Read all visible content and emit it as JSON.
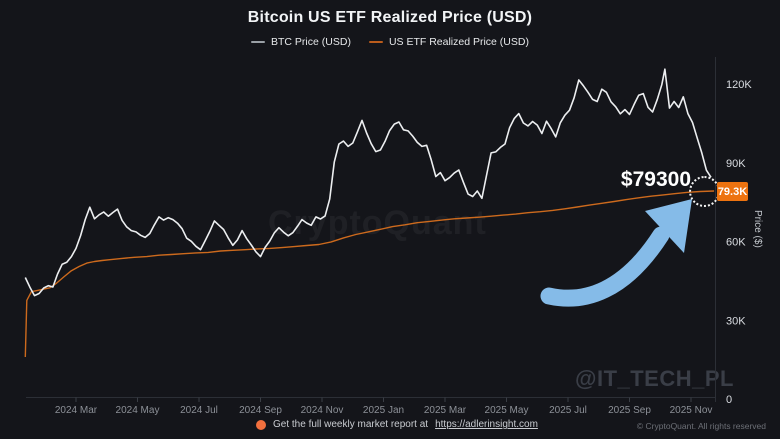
{
  "title": "Bitcoin US ETF Realized Price (USD)",
  "legend": [
    {
      "label": "BTC Price (USD)",
      "color": "#9aa0a6"
    },
    {
      "label": "US ETF Realized Price (USD)",
      "color": "#bb5c1c"
    }
  ],
  "watermark_center": "CryptoQuant",
  "watermark_handle": "@IT_TECH_PL",
  "y_axis": {
    "label": "Price ($)",
    "ticks": [
      {
        "label": "0",
        "value": 0
      },
      {
        "label": "30K",
        "value": 30
      },
      {
        "label": "60K",
        "value": 60
      },
      {
        "label": "90K",
        "value": 90
      },
      {
        "label": "120K",
        "value": 120
      }
    ]
  },
  "x_axis": {
    "ticks": [
      {
        "label": "2024 Mar",
        "t": 2
      },
      {
        "label": "2024 May",
        "t": 4
      },
      {
        "label": "2024 Jul",
        "t": 6
      },
      {
        "label": "2024 Sep",
        "t": 8
      },
      {
        "label": "2024 Nov",
        "t": 10
      },
      {
        "label": "2025 Jan",
        "t": 12
      },
      {
        "label": "2025 Mar",
        "t": 14
      },
      {
        "label": "2025 May",
        "t": 16
      },
      {
        "label": "2025 Jul",
        "t": 18
      },
      {
        "label": "2025 Sep",
        "t": 20
      },
      {
        "label": "2025 Nov",
        "t": 22
      }
    ]
  },
  "annotation": {
    "callout_text": "$79300",
    "axis_price_label": "79.3K",
    "badge_color": "#ed7310",
    "arrow_color": "#85bbe8"
  },
  "footer": {
    "dot_color": "#f2703e",
    "text": "Get the full weekly market report at",
    "link": "https://adlerinsight.com",
    "copyright": "© CryptoQuant. All rights reserved"
  },
  "chart_data": {
    "type": "line",
    "x_unit": "months since 2024-01-01",
    "value_unit": "thousand USD",
    "ylim": [
      0,
      120
    ],
    "grid": false,
    "legend_position": "top-center",
    "series": [
      {
        "name": "BTC Price (USD)",
        "color": "#eceef0",
        "width": 1.6,
        "points": [
          [
            0.35,
            46.3
          ],
          [
            0.5,
            42.6
          ],
          [
            0.65,
            39.4
          ],
          [
            0.8,
            40.2
          ],
          [
            0.95,
            42.3
          ],
          [
            1.1,
            43.2
          ],
          [
            1.25,
            42.7
          ],
          [
            1.4,
            47.6
          ],
          [
            1.55,
            51.4
          ],
          [
            1.7,
            52.1
          ],
          [
            1.85,
            54.3
          ],
          [
            2.0,
            57.4
          ],
          [
            2.15,
            62.3
          ],
          [
            2.3,
            68.4
          ],
          [
            2.45,
            73.1
          ],
          [
            2.6,
            68.7
          ],
          [
            2.75,
            70.2
          ],
          [
            2.9,
            71.3
          ],
          [
            3.05,
            69.7
          ],
          [
            3.2,
            71.1
          ],
          [
            3.35,
            72.4
          ],
          [
            3.5,
            68.1
          ],
          [
            3.65,
            65.6
          ],
          [
            3.8,
            64.2
          ],
          [
            3.95,
            63.7
          ],
          [
            4.1,
            62.4
          ],
          [
            4.25,
            61.6
          ],
          [
            4.4,
            63.1
          ],
          [
            4.55,
            66.4
          ],
          [
            4.7,
            69.4
          ],
          [
            4.85,
            68.2
          ],
          [
            5.0,
            69.1
          ],
          [
            5.15,
            68.4
          ],
          [
            5.3,
            67.0
          ],
          [
            5.45,
            64.9
          ],
          [
            5.6,
            61.3
          ],
          [
            5.75,
            60.1
          ],
          [
            5.9,
            58.2
          ],
          [
            6.05,
            56.9
          ],
          [
            6.2,
            60.4
          ],
          [
            6.35,
            63.9
          ],
          [
            6.5,
            67.9
          ],
          [
            6.65,
            66.2
          ],
          [
            6.8,
            64.6
          ],
          [
            6.95,
            61.4
          ],
          [
            7.1,
            58.6
          ],
          [
            7.25,
            60.6
          ],
          [
            7.4,
            64.2
          ],
          [
            7.55,
            61.1
          ],
          [
            7.7,
            58.7
          ],
          [
            7.85,
            56.1
          ],
          [
            8.0,
            54.3
          ],
          [
            8.15,
            57.8
          ],
          [
            8.3,
            60.2
          ],
          [
            8.45,
            63.3
          ],
          [
            8.6,
            65.3
          ],
          [
            8.75,
            63.6
          ],
          [
            8.9,
            62.2
          ],
          [
            9.05,
            63.4
          ],
          [
            9.2,
            65.8
          ],
          [
            9.35,
            68.4
          ],
          [
            9.5,
            67.1
          ],
          [
            9.65,
            66.2
          ],
          [
            9.8,
            69.4
          ],
          [
            9.95,
            68.6
          ],
          [
            10.1,
            69.8
          ],
          [
            10.25,
            76.2
          ],
          [
            10.4,
            90.4
          ],
          [
            10.55,
            97.2
          ],
          [
            10.7,
            98.3
          ],
          [
            10.85,
            96.3
          ],
          [
            11.0,
            97.6
          ],
          [
            11.15,
            101.8
          ],
          [
            11.3,
            106.2
          ],
          [
            11.45,
            101.4
          ],
          [
            11.6,
            97.3
          ],
          [
            11.75,
            94.3
          ],
          [
            11.9,
            94.9
          ],
          [
            12.05,
            98.2
          ],
          [
            12.2,
            102.3
          ],
          [
            12.35,
            104.8
          ],
          [
            12.5,
            105.6
          ],
          [
            12.65,
            102.6
          ],
          [
            12.8,
            102.2
          ],
          [
            12.95,
            100.2
          ],
          [
            13.1,
            97.8
          ],
          [
            13.25,
            96.3
          ],
          [
            13.4,
            96.7
          ],
          [
            13.55,
            91.2
          ],
          [
            13.7,
            84.8
          ],
          [
            13.85,
            86.3
          ],
          [
            14.0,
            83.2
          ],
          [
            14.15,
            84.4
          ],
          [
            14.3,
            86.1
          ],
          [
            14.45,
            87.3
          ],
          [
            14.6,
            82.6
          ],
          [
            14.75,
            78.1
          ],
          [
            14.9,
            77.2
          ],
          [
            15.05,
            79.3
          ],
          [
            15.2,
            76.5
          ],
          [
            15.35,
            85.2
          ],
          [
            15.5,
            93.8
          ],
          [
            15.65,
            94.2
          ],
          [
            15.8,
            95.9
          ],
          [
            15.95,
            97.2
          ],
          [
            16.1,
            103.4
          ],
          [
            16.25,
            106.9
          ],
          [
            16.4,
            108.8
          ],
          [
            16.55,
            105.2
          ],
          [
            16.7,
            104.1
          ],
          [
            16.85,
            105.8
          ],
          [
            17.0,
            104.4
          ],
          [
            17.15,
            101.2
          ],
          [
            17.3,
            105.9
          ],
          [
            17.45,
            103.1
          ],
          [
            17.6,
            99.9
          ],
          [
            17.75,
            105.3
          ],
          [
            17.9,
            108.2
          ],
          [
            18.05,
            110.1
          ],
          [
            18.2,
            114.8
          ],
          [
            18.35,
            121.6
          ],
          [
            18.5,
            119.4
          ],
          [
            18.65,
            116.9
          ],
          [
            18.8,
            114.2
          ],
          [
            18.95,
            113.4
          ],
          [
            19.1,
            118.1
          ],
          [
            19.25,
            116.9
          ],
          [
            19.4,
            113.3
          ],
          [
            19.55,
            111.4
          ],
          [
            19.7,
            108.7
          ],
          [
            19.85,
            110.3
          ],
          [
            20.0,
            108.5
          ],
          [
            20.15,
            112.3
          ],
          [
            20.3,
            115.8
          ],
          [
            20.45,
            116.4
          ],
          [
            20.6,
            111.2
          ],
          [
            20.75,
            109.4
          ],
          [
            20.9,
            114.1
          ],
          [
            21.05,
            119.8
          ],
          [
            21.15,
            125.7
          ],
          [
            21.3,
            110.9
          ],
          [
            21.45,
            113.4
          ],
          [
            21.6,
            111.1
          ],
          [
            21.75,
            115.2
          ],
          [
            21.9,
            108.8
          ],
          [
            22.05,
            105.4
          ],
          [
            22.2,
            99.6
          ],
          [
            22.35,
            93.8
          ],
          [
            22.5,
            87.2
          ],
          [
            22.65,
            84.5
          ]
        ]
      },
      {
        "name": "US ETF Realized Price (USD)",
        "color": "#cd6a1d",
        "width": 1.4,
        "points": [
          [
            0.35,
            16.0
          ],
          [
            0.4,
            37.6
          ],
          [
            0.55,
            40.9
          ],
          [
            0.75,
            41.4
          ],
          [
            0.95,
            41.9
          ],
          [
            1.15,
            42.4
          ],
          [
            1.35,
            44.0
          ],
          [
            1.6,
            46.5
          ],
          [
            1.85,
            48.9
          ],
          [
            2.1,
            50.5
          ],
          [
            2.35,
            51.8
          ],
          [
            2.6,
            52.4
          ],
          [
            2.85,
            52.8
          ],
          [
            3.1,
            53.1
          ],
          [
            3.5,
            53.6
          ],
          [
            3.9,
            54.0
          ],
          [
            4.3,
            54.3
          ],
          [
            4.7,
            54.8
          ],
          [
            5.1,
            55.1
          ],
          [
            5.5,
            55.4
          ],
          [
            5.9,
            55.7
          ],
          [
            6.3,
            55.9
          ],
          [
            6.7,
            56.4
          ],
          [
            7.1,
            56.7
          ],
          [
            7.5,
            56.9
          ],
          [
            7.9,
            57.2
          ],
          [
            8.3,
            57.4
          ],
          [
            8.7,
            57.7
          ],
          [
            9.1,
            58.1
          ],
          [
            9.5,
            58.5
          ],
          [
            9.9,
            58.9
          ],
          [
            10.3,
            59.9
          ],
          [
            10.7,
            61.4
          ],
          [
            11.1,
            62.7
          ],
          [
            11.5,
            63.7
          ],
          [
            11.9,
            64.7
          ],
          [
            12.3,
            65.7
          ],
          [
            12.7,
            66.4
          ],
          [
            13.1,
            67.2
          ],
          [
            13.5,
            67.7
          ],
          [
            13.9,
            68.2
          ],
          [
            14.3,
            68.7
          ],
          [
            14.7,
            69.0
          ],
          [
            15.1,
            69.3
          ],
          [
            15.5,
            69.7
          ],
          [
            15.9,
            70.1
          ],
          [
            16.3,
            70.5
          ],
          [
            16.7,
            71.0
          ],
          [
            17.1,
            71.4
          ],
          [
            17.5,
            71.9
          ],
          [
            17.9,
            72.5
          ],
          [
            18.3,
            73.2
          ],
          [
            18.7,
            73.9
          ],
          [
            19.1,
            74.6
          ],
          [
            19.5,
            75.3
          ],
          [
            19.9,
            76.0
          ],
          [
            20.3,
            76.7
          ],
          [
            20.7,
            77.3
          ],
          [
            21.1,
            77.8
          ],
          [
            21.5,
            78.3
          ],
          [
            21.9,
            78.8
          ],
          [
            22.3,
            79.1
          ],
          [
            22.75,
            79.3
          ]
        ]
      }
    ],
    "final_values": {
      "btc_k_usd": 84.5,
      "etf_realized_k_usd": 79.3
    }
  }
}
